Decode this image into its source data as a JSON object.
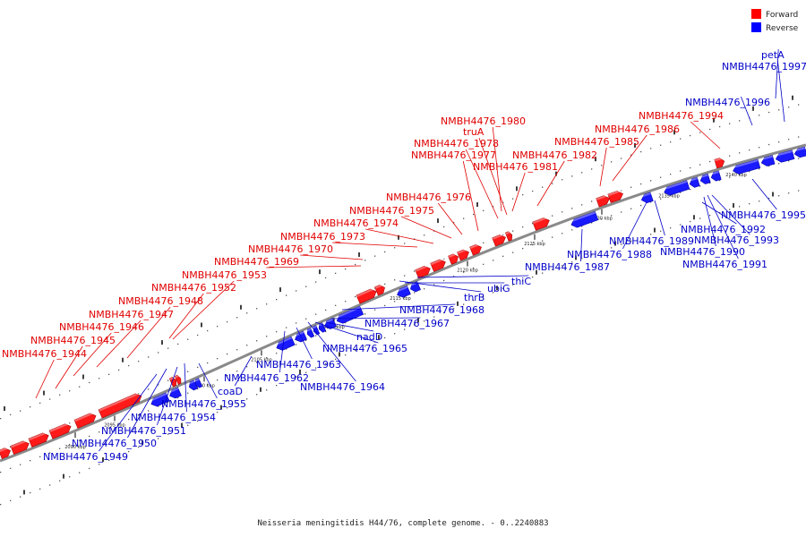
{
  "legend": {
    "forward_label": "Forward",
    "reverse_label": "Reverse",
    "forward_color": "#ff0000",
    "reverse_color": "#0000ff"
  },
  "caption": "Neisseria meningitidis H44/76, complete genome. - 0..2240883",
  "colors": {
    "backbone": "#888888",
    "dots": "#555555"
  },
  "ticks": [
    "2090 kbp",
    "2095 kbp",
    "2100 kbp",
    "2105 kbp",
    "2110 kbp",
    "2115 kbp",
    "2120 kbp",
    "2125 kbp",
    "2130 kbp",
    "2135 kbp",
    "2140 kbp"
  ],
  "forward_labels": [
    "NMBH4476_1944",
    "NMBH4476_1945",
    "NMBH4476_1946",
    "NMBH4476_1947",
    "NMBH4476_1948",
    "NMBH4476_1952",
    "NMBH4476_1953",
    "NMBH4476_1969",
    "NMBH4476_1970",
    "NMBH4476_1973",
    "NMBH4476_1974",
    "NMBH4476_1975",
    "NMBH4476_1976",
    "NMBH4476_1977",
    "NMBH4476_1978",
    "truA",
    "NMBH4476_1980",
    "NMBH4476_1981",
    "NMBH4476_1982",
    "NMBH4476_1985",
    "NMBH4476_1986",
    "NMBH4476_1994"
  ],
  "reverse_labels": [
    "NMBH4476_1949",
    "NMBH4476_1950",
    "NMBH4476_1951",
    "NMBH4476_1954",
    "NMBH4476_1955",
    "coaD",
    "NMBH4476_1962",
    "NMBH4476_1963",
    "NMBH4476_1964",
    "NMBH4476_1965",
    "nadD",
    "NMBH4476_1967",
    "NMBH4476_1968",
    "thrB",
    "ubiG",
    "thiC",
    "NMBH4476_1987",
    "NMBH4476_1988",
    "NMBH4476_1989",
    "NMBH4476_1990",
    "NMBH4476_1991",
    "NMBH4476_1992",
    "NMBH4476_1993",
    "NMBH4476_1995",
    "NMBH4476_1996",
    "NMBH4476_1997",
    "petA"
  ]
}
